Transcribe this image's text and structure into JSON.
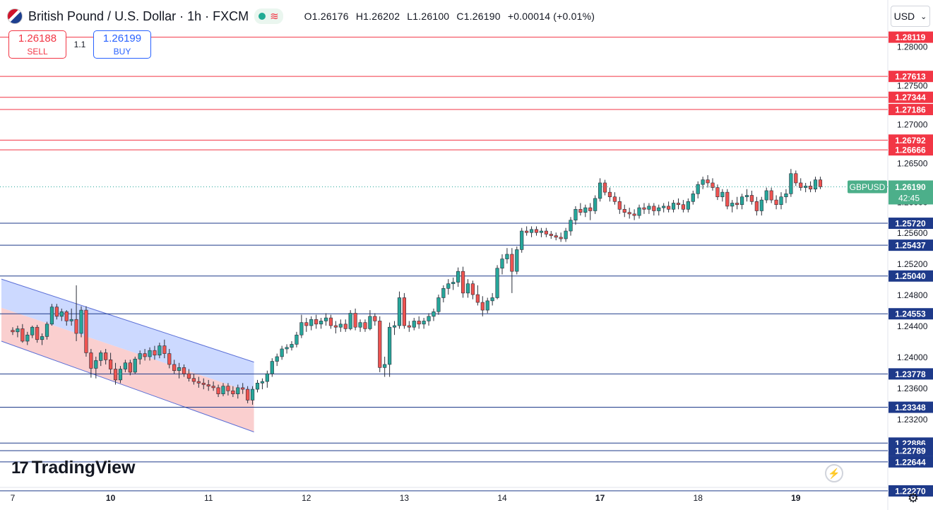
{
  "header": {
    "title": "British Pound / U.S. Dollar · 1h · FXCM",
    "ohlc": {
      "open": "O1.26176",
      "high": "H1.26202",
      "low": "L1.26100",
      "close": "C1.26190",
      "change": "+0.00014 (+0.01%)"
    }
  },
  "trade": {
    "sell_price": "1.26188",
    "sell_label": "SELL",
    "spread": "1.1",
    "buy_price": "1.26199",
    "buy_label": "BUY"
  },
  "currency_selector": "USD",
  "logo_text": "TradingView",
  "colors": {
    "up": "#26a69a",
    "down": "#ef5350",
    "resistance": "#f23645",
    "support": "#2962ff",
    "channel_upper_fill": "#c7d5ff",
    "channel_lower_fill": "#f9caca",
    "last_price_label": "#4caf8a"
  },
  "chart_data": {
    "type": "candlestick",
    "symbol": "GBPUSD",
    "timeframe": "1h",
    "price_axis": {
      "range": [
        1.2214,
        1.2818
      ],
      "ticks": [
        "1.28000",
        "1.27500",
        "1.27000",
        "1.26500",
        "1.26000",
        "1.25600",
        "1.25200",
        "1.24800",
        "1.24400",
        "1.24000",
        "1.23600",
        "1.23200"
      ]
    },
    "time_axis": {
      "labels": [
        {
          "text": "7",
          "bar": 0
        },
        {
          "text": "10",
          "bar": 20
        },
        {
          "text": "11",
          "bar": 40
        },
        {
          "text": "12",
          "bar": 60
        },
        {
          "text": "13",
          "bar": 80
        },
        {
          "text": "14",
          "bar": 100
        },
        {
          "text": "17",
          "bar": 120
        },
        {
          "text": "18",
          "bar": 140
        },
        {
          "text": "19",
          "bar": 160
        }
      ],
      "bar_count": 172
    },
    "last_price": {
      "label": "GBPUSD",
      "price": "1.26190",
      "countdown": "42:45"
    },
    "resistance_levels": [
      "1.28119",
      "1.27613",
      "1.27344",
      "1.27186",
      "1.26792",
      "1.26666"
    ],
    "support_levels": [
      "1.25720",
      "1.25437",
      "1.25040",
      "1.24553",
      "1.23778",
      "1.23348",
      "1.22886",
      "1.22789",
      "1.22644",
      "1.22270"
    ],
    "channel": {
      "start_bar": 0,
      "end_bar": 49,
      "upper_start": 1.25,
      "mid_start": 1.2463,
      "lower_start": 1.242,
      "upper_end": 1.2393,
      "mid_end": 1.2353,
      "lower_end": 1.2303
    },
    "candles": [
      [
        1.2434,
        1.2438,
        1.2428,
        1.2432
      ],
      [
        1.2432,
        1.244,
        1.2425,
        1.2436
      ],
      [
        1.2436,
        1.2442,
        1.2418,
        1.242
      ],
      [
        1.242,
        1.2432,
        1.2415,
        1.2428
      ],
      [
        1.2428,
        1.244,
        1.2424,
        1.2438
      ],
      [
        1.2438,
        1.2441,
        1.2418,
        1.2422
      ],
      [
        1.2422,
        1.243,
        1.2415,
        1.2426
      ],
      [
        1.2426,
        1.2445,
        1.2422,
        1.2442
      ],
      [
        1.2442,
        1.2468,
        1.244,
        1.2464
      ],
      [
        1.2464,
        1.2468,
        1.2448,
        1.2452
      ],
      [
        1.2452,
        1.2462,
        1.2446,
        1.2458
      ],
      [
        1.2458,
        1.246,
        1.244,
        1.2446
      ],
      [
        1.2446,
        1.2462,
        1.244,
        1.2448
      ],
      [
        1.2448,
        1.2492,
        1.242,
        1.243
      ],
      [
        1.243,
        1.2465,
        1.2425,
        1.246
      ],
      [
        1.246,
        1.2465,
        1.24,
        1.2405
      ],
      [
        1.2405,
        1.241,
        1.2373,
        1.2385
      ],
      [
        1.2385,
        1.24,
        1.2372,
        1.2395
      ],
      [
        1.2395,
        1.2408,
        1.2388,
        1.2405
      ],
      [
        1.2405,
        1.241,
        1.239,
        1.2396
      ],
      [
        1.2396,
        1.2405,
        1.2378,
        1.2384
      ],
      [
        1.2384,
        1.2392,
        1.2364,
        1.237
      ],
      [
        1.237,
        1.2388,
        1.2366,
        1.2384
      ],
      [
        1.2384,
        1.2396,
        1.238,
        1.2392
      ],
      [
        1.2392,
        1.2396,
        1.2376,
        1.238
      ],
      [
        1.238,
        1.24,
        1.2378,
        1.2397
      ],
      [
        1.2397,
        1.2408,
        1.239,
        1.2404
      ],
      [
        1.2404,
        1.241,
        1.2395,
        1.24
      ],
      [
        1.24,
        1.2412,
        1.2395,
        1.2408
      ],
      [
        1.2408,
        1.2414,
        1.2396,
        1.2402
      ],
      [
        1.2402,
        1.2418,
        1.2398,
        1.2414
      ],
      [
        1.2414,
        1.2422,
        1.2398,
        1.2404
      ],
      [
        1.2404,
        1.241,
        1.2385,
        1.239
      ],
      [
        1.239,
        1.2396,
        1.2378,
        1.2382
      ],
      [
        1.2382,
        1.2392,
        1.2372,
        1.2386
      ],
      [
        1.2386,
        1.239,
        1.2374,
        1.2378
      ],
      [
        1.2378,
        1.2384,
        1.2368,
        1.2372
      ],
      [
        1.2372,
        1.2378,
        1.2364,
        1.2368
      ],
      [
        1.2368,
        1.2374,
        1.236,
        1.2366
      ],
      [
        1.2366,
        1.2372,
        1.2358,
        1.2364
      ],
      [
        1.2364,
        1.237,
        1.2356,
        1.2362
      ],
      [
        1.2362,
        1.2368,
        1.2356,
        1.236
      ],
      [
        1.236,
        1.2364,
        1.2348,
        1.2352
      ],
      [
        1.2352,
        1.2366,
        1.2349,
        1.2362
      ],
      [
        1.2362,
        1.2366,
        1.235,
        1.2356
      ],
      [
        1.2356,
        1.2362,
        1.2348,
        1.2352
      ],
      [
        1.2352,
        1.2364,
        1.2346,
        1.236
      ],
      [
        1.236,
        1.2366,
        1.2352,
        1.2358
      ],
      [
        1.2358,
        1.2362,
        1.234,
        1.2344
      ],
      [
        1.2344,
        1.2362,
        1.2338,
        1.2358
      ],
      [
        1.2358,
        1.237,
        1.2354,
        1.2366
      ],
      [
        1.2366,
        1.2372,
        1.2358,
        1.2368
      ],
      [
        1.2368,
        1.2382,
        1.236,
        1.2378
      ],
      [
        1.2378,
        1.2398,
        1.2374,
        1.2394
      ],
      [
        1.2394,
        1.2404,
        1.2388,
        1.24
      ],
      [
        1.24,
        1.2414,
        1.2396,
        1.241
      ],
      [
        1.241,
        1.2416,
        1.2404,
        1.2412
      ],
      [
        1.2412,
        1.242,
        1.2408,
        1.2416
      ],
      [
        1.2416,
        1.2432,
        1.2412,
        1.2428
      ],
      [
        1.2428,
        1.2454,
        1.2424,
        1.2444
      ],
      [
        1.2444,
        1.245,
        1.2432,
        1.244
      ],
      [
        1.244,
        1.2452,
        1.2434,
        1.2448
      ],
      [
        1.2448,
        1.2454,
        1.2436,
        1.2442
      ],
      [
        1.2442,
        1.245,
        1.2436,
        1.2446
      ],
      [
        1.2446,
        1.2456,
        1.244,
        1.245
      ],
      [
        1.245,
        1.2454,
        1.2436,
        1.244
      ],
      [
        1.244,
        1.2446,
        1.243,
        1.2438
      ],
      [
        1.2438,
        1.2448,
        1.2432,
        1.2442
      ],
      [
        1.2442,
        1.2448,
        1.2432,
        1.2436
      ],
      [
        1.2436,
        1.246,
        1.2434,
        1.2456
      ],
      [
        1.2456,
        1.2462,
        1.2434,
        1.2438
      ],
      [
        1.2438,
        1.2448,
        1.2432,
        1.2444
      ],
      [
        1.2444,
        1.2448,
        1.2432,
        1.2436
      ],
      [
        1.2436,
        1.246,
        1.2434,
        1.2452
      ],
      [
        1.2452,
        1.2456,
        1.244,
        1.2446
      ],
      [
        1.2446,
        1.2452,
        1.238,
        1.2386
      ],
      [
        1.2386,
        1.24,
        1.2374,
        1.239
      ],
      [
        1.239,
        1.2444,
        1.2374,
        1.2438
      ],
      [
        1.2438,
        1.2446,
        1.2428,
        1.244
      ],
      [
        1.244,
        1.2484,
        1.2436,
        1.2476
      ],
      [
        1.2476,
        1.2482,
        1.2436,
        1.244
      ],
      [
        1.244,
        1.2446,
        1.2432,
        1.2438
      ],
      [
        1.2438,
        1.245,
        1.2434,
        1.2446
      ],
      [
        1.2446,
        1.2452,
        1.2436,
        1.2442
      ],
      [
        1.2442,
        1.245,
        1.2436,
        1.2446
      ],
      [
        1.2446,
        1.2456,
        1.244,
        1.2452
      ],
      [
        1.2452,
        1.2462,
        1.2446,
        1.2458
      ],
      [
        1.2458,
        1.248,
        1.2454,
        1.2476
      ],
      [
        1.2476,
        1.2492,
        1.247,
        1.2488
      ],
      [
        1.2488,
        1.25,
        1.248,
        1.2494
      ],
      [
        1.2494,
        1.2502,
        1.2486,
        1.2496
      ],
      [
        1.2496,
        1.2515,
        1.249,
        1.251
      ],
      [
        1.251,
        1.2516,
        1.2476,
        1.2482
      ],
      [
        1.2482,
        1.25,
        1.2476,
        1.2494
      ],
      [
        1.2494,
        1.2498,
        1.2474,
        1.248
      ],
      [
        1.248,
        1.2492,
        1.2466,
        1.247
      ],
      [
        1.247,
        1.2478,
        1.2452,
        1.246
      ],
      [
        1.246,
        1.2476,
        1.2456,
        1.2472
      ],
      [
        1.2472,
        1.2482,
        1.2466,
        1.2476
      ],
      [
        1.2476,
        1.2518,
        1.2474,
        1.2514
      ],
      [
        1.2514,
        1.2532,
        1.2506,
        1.2526
      ],
      [
        1.2526,
        1.254,
        1.252,
        1.2532
      ],
      [
        1.2532,
        1.254,
        1.2482,
        1.251
      ],
      [
        1.251,
        1.2542,
        1.2506,
        1.2538
      ],
      [
        1.2538,
        1.2566,
        1.2534,
        1.2562
      ],
      [
        1.2562,
        1.2568,
        1.2556,
        1.256
      ],
      [
        1.256,
        1.2568,
        1.2554,
        1.2564
      ],
      [
        1.2564,
        1.2568,
        1.2556,
        1.256
      ],
      [
        1.256,
        1.2566,
        1.2554,
        1.2562
      ],
      [
        1.2562,
        1.2566,
        1.2554,
        1.2558
      ],
      [
        1.2558,
        1.2562,
        1.2552,
        1.2556
      ],
      [
        1.2556,
        1.256,
        1.255,
        1.2554
      ],
      [
        1.2554,
        1.256,
        1.2548,
        1.2552
      ],
      [
        1.2552,
        1.2566,
        1.2548,
        1.2562
      ],
      [
        1.2562,
        1.258,
        1.2556,
        1.2576
      ],
      [
        1.2576,
        1.2594,
        1.257,
        1.259
      ],
      [
        1.259,
        1.2598,
        1.2582,
        1.2586
      ],
      [
        1.2586,
        1.2596,
        1.258,
        1.2592
      ],
      [
        1.2592,
        1.2598,
        1.2576,
        1.2588
      ],
      [
        1.2588,
        1.2608,
        1.2584,
        1.2604
      ],
      [
        1.2604,
        1.263,
        1.26,
        1.2624
      ],
      [
        1.2624,
        1.2628,
        1.2608,
        1.2612
      ],
      [
        1.2612,
        1.2618,
        1.26,
        1.2606
      ],
      [
        1.2606,
        1.2612,
        1.2596,
        1.26
      ],
      [
        1.26,
        1.2606,
        1.2584,
        1.259
      ],
      [
        1.259,
        1.2596,
        1.258,
        1.2586
      ],
      [
        1.2586,
        1.2592,
        1.2578,
        1.2584
      ],
      [
        1.2584,
        1.259,
        1.2576,
        1.2582
      ],
      [
        1.2582,
        1.2596,
        1.2578,
        1.2592
      ],
      [
        1.2592,
        1.2598,
        1.2584,
        1.259
      ],
      [
        1.259,
        1.2598,
        1.2584,
        1.2594
      ],
      [
        1.2594,
        1.2598,
        1.2582,
        1.2588
      ],
      [
        1.2588,
        1.2596,
        1.2582,
        1.2592
      ],
      [
        1.2592,
        1.2598,
        1.2586,
        1.2594
      ],
      [
        1.2594,
        1.26,
        1.2586,
        1.259
      ],
      [
        1.259,
        1.2602,
        1.2586,
        1.2598
      ],
      [
        1.2598,
        1.2604,
        1.259,
        1.2596
      ],
      [
        1.2596,
        1.2602,
        1.2586,
        1.259
      ],
      [
        1.259,
        1.2604,
        1.2586,
        1.26
      ],
      [
        1.26,
        1.2614,
        1.2596,
        1.261
      ],
      [
        1.261,
        1.2626,
        1.2604,
        1.2622
      ],
      [
        1.2622,
        1.2632,
        1.2616,
        1.2628
      ],
      [
        1.2628,
        1.2634,
        1.2618,
        1.2624
      ],
      [
        1.2624,
        1.263,
        1.2614,
        1.2618
      ],
      [
        1.2618,
        1.2622,
        1.2602,
        1.2606
      ],
      [
        1.2606,
        1.2616,
        1.26,
        1.2612
      ],
      [
        1.2612,
        1.2616,
        1.259,
        1.2594
      ],
      [
        1.2594,
        1.2602,
        1.2586,
        1.2598
      ],
      [
        1.2598,
        1.2606,
        1.259,
        1.2596
      ],
      [
        1.2596,
        1.261,
        1.259,
        1.2606
      ],
      [
        1.2606,
        1.2616,
        1.26,
        1.2608
      ],
      [
        1.2608,
        1.2614,
        1.2596,
        1.26
      ],
      [
        1.26,
        1.2606,
        1.2582,
        1.2588
      ],
      [
        1.2588,
        1.2606,
        1.2582,
        1.2602
      ],
      [
        1.2602,
        1.2618,
        1.2598,
        1.2614
      ],
      [
        1.2614,
        1.2618,
        1.2598,
        1.2602
      ],
      [
        1.2602,
        1.2608,
        1.259,
        1.2596
      ],
      [
        1.2596,
        1.2612,
        1.259,
        1.2606
      ],
      [
        1.2606,
        1.2616,
        1.2598,
        1.261
      ],
      [
        1.261,
        1.2642,
        1.2606,
        1.2636
      ],
      [
        1.2636,
        1.264,
        1.262,
        1.2624
      ],
      [
        1.2624,
        1.263,
        1.2614,
        1.2618
      ],
      [
        1.2618,
        1.2624,
        1.2612,
        1.262
      ],
      [
        1.262,
        1.2626,
        1.2612,
        1.2616
      ],
      [
        1.2616,
        1.2632,
        1.2612,
        1.2628
      ],
      [
        1.2628,
        1.2632,
        1.2616,
        1.2619
      ]
    ]
  }
}
